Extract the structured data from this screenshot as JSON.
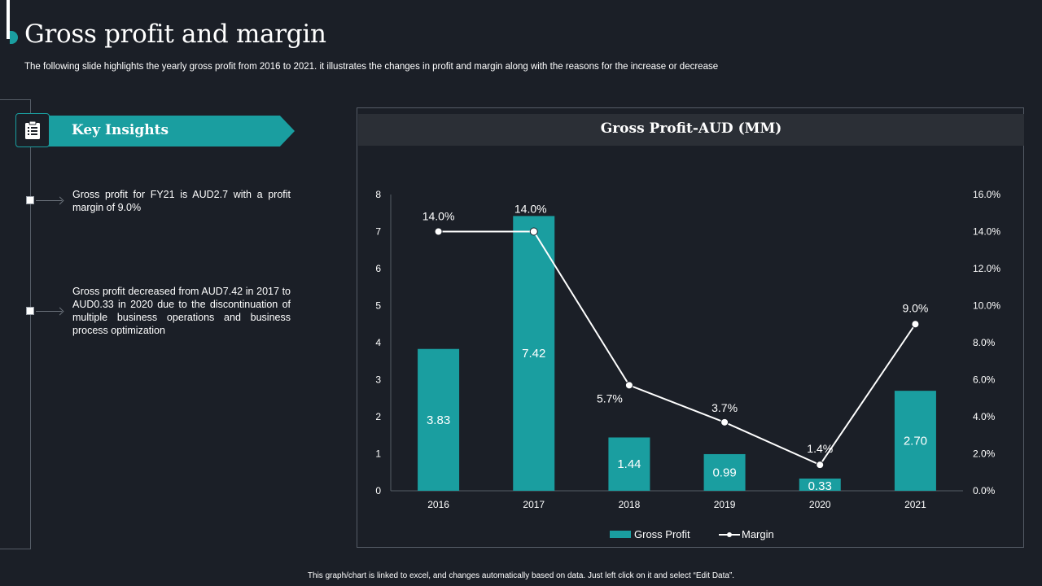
{
  "page": {
    "title": "Gross profit and margin",
    "subtitle": "The following slide highlights the yearly gross profit from 2016 to 2021. it illustrates the changes in profit and margin along with the reasons for the increase or decrease",
    "footer": "This graph/chart is linked to excel, and changes automatically based on data. Just left click on it and select “Edit Data”."
  },
  "insights": {
    "heading": "Key Insights",
    "icon": "clipboard-icon",
    "items": [
      "Gross profit for FY21 is AUD2.7 with a profit margin of 9.0%",
      "Gross profit decreased from AUD7.42 in 2017 to AUD0.33 in 2020 due to the discontinuation of multiple business operations and business process optimization"
    ]
  },
  "colors": {
    "bar": "#1a9ea0",
    "line": "#ffffff",
    "background": "#1b1f27",
    "header": "#2b2f36"
  },
  "chart_data": {
    "type": "bar",
    "title": "Gross Profit-AUD (MM)",
    "categories": [
      "2016",
      "2017",
      "2018",
      "2019",
      "2020",
      "2021"
    ],
    "series": [
      {
        "name": "Gross Profit",
        "kind": "bar",
        "axis": "left",
        "values": [
          3.83,
          7.42,
          1.44,
          0.99,
          0.33,
          2.7
        ],
        "labels": [
          "3.83",
          "7.42",
          "1.44",
          "0.99",
          "0.33",
          "2.70"
        ]
      },
      {
        "name": "Margin",
        "kind": "line",
        "axis": "right",
        "values": [
          14.0,
          14.0,
          5.7,
          3.7,
          1.4,
          9.0
        ],
        "labels": [
          "14.0%",
          "14.0%",
          "5.7%",
          "3.7%",
          "1.4%",
          "9.0%"
        ]
      }
    ],
    "ylim": [
      0,
      8
    ],
    "yticks": [
      "0",
      "1",
      "2",
      "3",
      "4",
      "5",
      "6",
      "7",
      "8"
    ],
    "y2lim": [
      0,
      16
    ],
    "y2ticks": [
      "0.0%",
      "2.0%",
      "4.0%",
      "6.0%",
      "8.0%",
      "10.0%",
      "12.0%",
      "14.0%",
      "16.0%"
    ],
    "legend": [
      "Gross Profit",
      "Margin"
    ],
    "legend_position": "bottom",
    "grid": false
  }
}
